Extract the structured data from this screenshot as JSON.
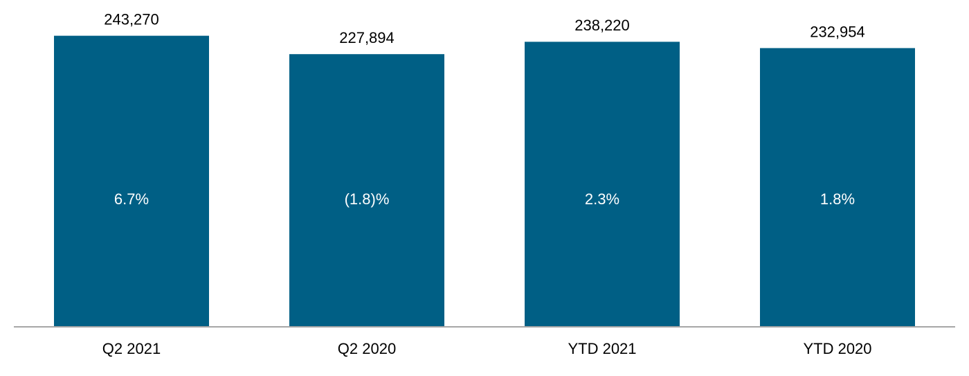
{
  "chart_data": {
    "type": "bar",
    "categories": [
      "Q2 2021",
      "Q2 2020",
      "YTD 2021",
      "YTD 2020"
    ],
    "values": [
      243270,
      227894,
      238220,
      232954
    ],
    "value_labels": [
      "243,270",
      "227,894",
      "238,220",
      "232,954"
    ],
    "growth_values": [
      6.7,
      -1.8,
      2.3,
      1.8
    ],
    "growth_labels": [
      "6.7%",
      "(1.8)%",
      "2.3%",
      "1.8%"
    ],
    "color": "#005f85",
    "ylim": [
      0,
      250000
    ]
  }
}
